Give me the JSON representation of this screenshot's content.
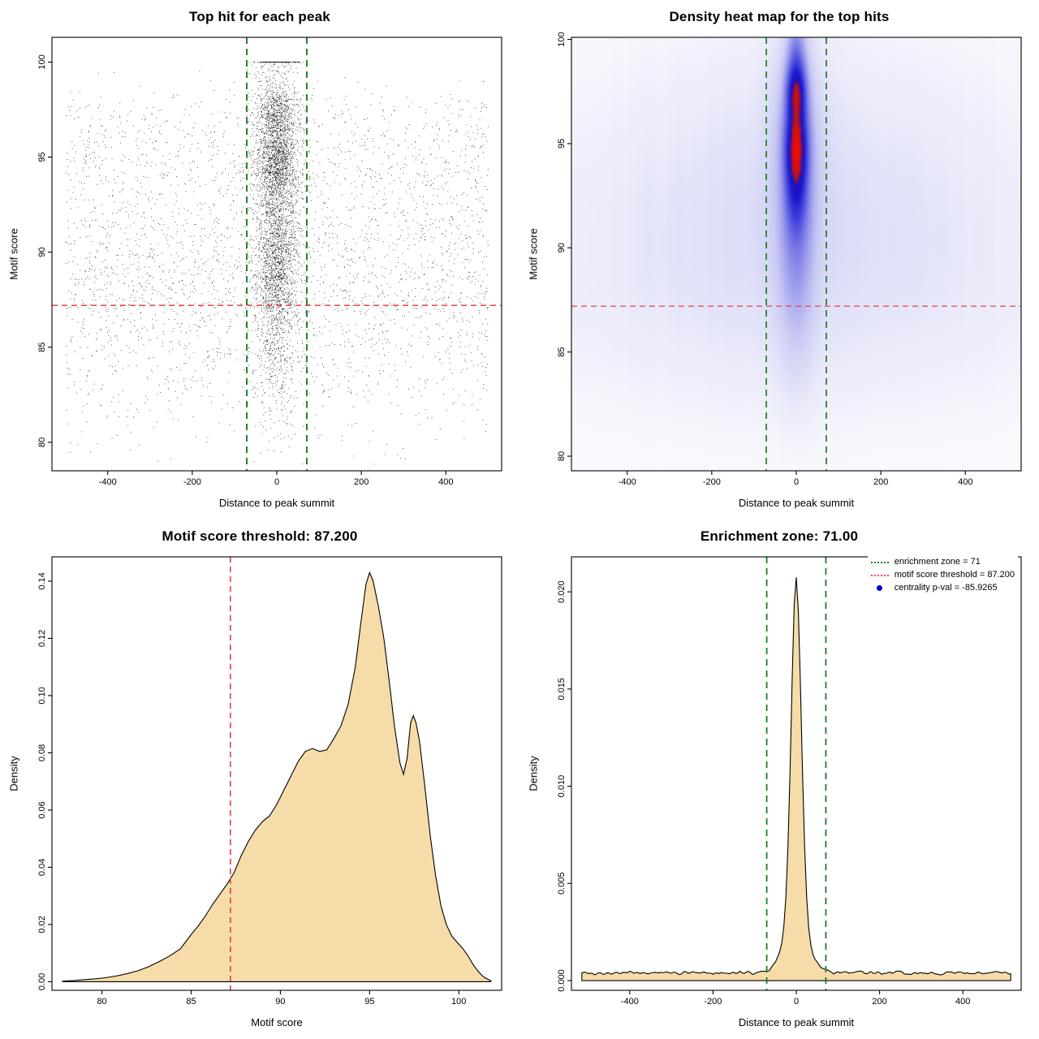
{
  "page": {
    "background": "#ffffff"
  },
  "colors": {
    "point_black": "#000000",
    "threshold_red": "#e63333",
    "zone_green": "#1d7d1d",
    "fill_wheat": "#f5dca8",
    "curve_black": "#000000",
    "legend_blue": "#0000cc",
    "axis_black": "#000000"
  },
  "chart_data": [
    {
      "id": "scatter",
      "type": "scatter",
      "title": "Top hit for each peak",
      "xlabel": "Distance to peak summit",
      "ylabel": "Motif score",
      "xlim": [
        -532,
        532
      ],
      "ylim": [
        78.5,
        101.3
      ],
      "xticks": {
        "values": [
          -400,
          -200,
          0,
          200,
          400
        ],
        "labels": [
          "-400",
          "-200",
          "0",
          "200",
          "400"
        ]
      },
      "yticks": {
        "values": [
          80,
          85,
          90,
          95,
          100
        ],
        "labels": [
          "80",
          "85",
          "90",
          "95",
          "100"
        ]
      },
      "hline": 87.2,
      "vlines": [
        -71,
        71
      ],
      "generator": {
        "seed": 42,
        "clamp_max_score": 100.0,
        "min_score": 78.8,
        "background": {
          "n": 3200,
          "x_uniform": [
            -500,
            500
          ],
          "score_mixture": [
            {
              "mean": 94.8,
              "sd": 1.3,
              "w": 0.2
            },
            {
              "mean": 97.2,
              "sd": 0.9,
              "w": 0.08
            },
            {
              "mean": 91.2,
              "sd": 1.9,
              "w": 0.22
            },
            {
              "mean": 89.0,
              "sd": 1.6,
              "w": 0.18
            },
            {
              "mean": 86.5,
              "sd": 2.1,
              "w": 0.19
            },
            {
              "mean": 83.8,
              "sd": 2.6,
              "w": 0.13
            }
          ]
        },
        "central": {
          "n": 4600,
          "x_normal": {
            "mean": 0,
            "sd": 26
          },
          "score_mixture": [
            {
              "mean": 94.8,
              "sd": 1.2,
              "w": 0.3
            },
            {
              "mean": 97.3,
              "sd": 0.9,
              "w": 0.17
            },
            {
              "mean": 100.4,
              "sd": 0.8,
              "w": 0.06
            },
            {
              "mean": 91.3,
              "sd": 1.8,
              "w": 0.19
            },
            {
              "mean": 89.0,
              "sd": 1.5,
              "w": 0.13
            },
            {
              "mean": 86.5,
              "sd": 2.0,
              "w": 0.1
            },
            {
              "mean": 84.0,
              "sd": 2.4,
              "w": 0.05
            }
          ]
        }
      }
    },
    {
      "id": "heatmap",
      "type": "heatmap",
      "title": "Density heat map for the top hits",
      "xlabel": "Distance to peak summit",
      "ylabel": "Motif score",
      "xlim": [
        -532,
        532
      ],
      "ylim": [
        79.3,
        100.1
      ],
      "xticks": {
        "values": [
          -400,
          -200,
          0,
          200,
          400
        ],
        "labels": [
          "-400",
          "-200",
          "0",
          "200",
          "400"
        ]
      },
      "yticks": {
        "values": [
          80,
          85,
          90,
          95,
          100
        ],
        "labels": [
          "80",
          "85",
          "90",
          "95",
          "100"
        ]
      },
      "hline": 87.2,
      "vlines": [
        -71,
        71
      ],
      "gamma": 0.5,
      "components": [
        {
          "x": 0,
          "y": 94.9,
          "sx": 15,
          "sy": 1.15,
          "w": 1.0
        },
        {
          "x": 0,
          "y": 97.4,
          "sx": 13,
          "sy": 0.85,
          "w": 0.95
        },
        {
          "x": 0,
          "y": 93.1,
          "sx": 16,
          "sy": 1.5,
          "w": 0.55
        },
        {
          "x": 0,
          "y": 96.0,
          "sx": 17,
          "sy": 2.2,
          "w": 0.4
        },
        {
          "x": 0,
          "y": 99.0,
          "sx": 12,
          "sy": 1.2,
          "w": 0.26
        },
        {
          "x": 0,
          "y": 90.8,
          "sx": 22,
          "sy": 2.4,
          "w": 0.16
        },
        {
          "x": 0,
          "y": 95.0,
          "sx": 38,
          "sy": 3.2,
          "w": 0.12
        },
        {
          "x": 0,
          "y": 92.0,
          "sx": 34,
          "sy": 4.0,
          "w": 0.09
        },
        {
          "x": 0,
          "y": 87.6,
          "sx": 30,
          "sy": 2.8,
          "w": 0.05
        },
        {
          "x": 0,
          "y": 92.5,
          "sx": 280,
          "sy": 4.8,
          "w": 0.035
        },
        {
          "x": 0,
          "y": 88.5,
          "sx": 430,
          "sy": 4.0,
          "w": 0.022
        }
      ],
      "streaks": {
        "seed": 7,
        "amp": 0.01,
        "y_center": 91.5,
        "y_sd": 6.0
      },
      "colormap": [
        {
          "t": 0.0,
          "c": "#ffffff"
        },
        {
          "t": 0.05,
          "c": "#f7f7fd"
        },
        {
          "t": 0.12,
          "c": "#e9e9fa"
        },
        {
          "t": 0.25,
          "c": "#c9c9f4"
        },
        {
          "t": 0.42,
          "c": "#8a8aea"
        },
        {
          "t": 0.6,
          "c": "#4545dd"
        },
        {
          "t": 0.74,
          "c": "#1717cf"
        },
        {
          "t": 0.84,
          "c": "#2a10b4"
        },
        {
          "t": 0.885,
          "c": "#bb1212"
        },
        {
          "t": 1.0,
          "c": "#ee0d0d"
        }
      ]
    },
    {
      "id": "score_density",
      "type": "density",
      "title": "Motif score threshold: 87.200",
      "xlabel": "Motif score",
      "ylabel": "Density",
      "xlim": [
        77.2,
        102.4
      ],
      "ylim": [
        -0.003,
        0.1485
      ],
      "xticks": {
        "values": [
          80,
          85,
          90,
          95,
          100
        ],
        "labels": [
          "80",
          "85",
          "90",
          "95",
          "100"
        ]
      },
      "yticks": {
        "values": [
          0,
          0.02,
          0.04,
          0.06,
          0.08,
          0.1,
          0.12,
          0.14
        ],
        "labels": [
          "0.00",
          "0.02",
          "0.04",
          "0.06",
          "0.08",
          "0.10",
          "0.12",
          "0.14"
        ]
      },
      "vline_red": 87.2,
      "points": [
        [
          77.8,
          0.0002
        ],
        [
          78.4,
          0.0004
        ],
        [
          79,
          0.0007
        ],
        [
          79.6,
          0.001
        ],
        [
          80.2,
          0.0014
        ],
        [
          80.8,
          0.002
        ],
        [
          81.4,
          0.0028
        ],
        [
          82,
          0.0038
        ],
        [
          82.6,
          0.0052
        ],
        [
          83.2,
          0.007
        ],
        [
          83.8,
          0.009
        ],
        [
          84.4,
          0.0115
        ],
        [
          85,
          0.0165
        ],
        [
          85.4,
          0.0195
        ],
        [
          85.8,
          0.023
        ],
        [
          86.2,
          0.027
        ],
        [
          86.6,
          0.0305
        ],
        [
          87,
          0.034
        ],
        [
          87.4,
          0.038
        ],
        [
          87.8,
          0.044
        ],
        [
          88.2,
          0.049
        ],
        [
          88.6,
          0.053
        ],
        [
          89,
          0.056
        ],
        [
          89.4,
          0.058
        ],
        [
          89.8,
          0.062
        ],
        [
          90.2,
          0.067
        ],
        [
          90.6,
          0.072
        ],
        [
          91,
          0.077
        ],
        [
          91.4,
          0.0805
        ],
        [
          91.8,
          0.0815
        ],
        [
          92.2,
          0.0805
        ],
        [
          92.6,
          0.081
        ],
        [
          93,
          0.085
        ],
        [
          93.4,
          0.0895
        ],
        [
          93.8,
          0.097
        ],
        [
          94.2,
          0.11
        ],
        [
          94.5,
          0.125
        ],
        [
          94.8,
          0.139
        ],
        [
          95,
          0.143
        ],
        [
          95.2,
          0.14
        ],
        [
          95.5,
          0.131
        ],
        [
          95.8,
          0.12
        ],
        [
          96.1,
          0.105
        ],
        [
          96.4,
          0.089
        ],
        [
          96.7,
          0.0765
        ],
        [
          96.9,
          0.0725
        ],
        [
          97.1,
          0.078
        ],
        [
          97.3,
          0.0905
        ],
        [
          97.45,
          0.093
        ],
        [
          97.6,
          0.0905
        ],
        [
          97.8,
          0.084
        ],
        [
          98.1,
          0.068
        ],
        [
          98.4,
          0.051
        ],
        [
          98.7,
          0.037
        ],
        [
          99,
          0.0265
        ],
        [
          99.3,
          0.02
        ],
        [
          99.6,
          0.016
        ],
        [
          99.9,
          0.0138
        ],
        [
          100.2,
          0.0118
        ],
        [
          100.5,
          0.0092
        ],
        [
          100.8,
          0.006
        ],
        [
          101.1,
          0.0035
        ],
        [
          101.4,
          0.0016
        ],
        [
          101.8,
          0.0003
        ]
      ]
    },
    {
      "id": "position_density",
      "type": "density",
      "title": "Enrichment zone: 71.00",
      "xlabel": "Distance to peak summit",
      "ylabel": "Density",
      "xlim": [
        -540,
        540
      ],
      "ylim": [
        -0.0005,
        0.0218
      ],
      "xticks": {
        "values": [
          -400,
          -200,
          0,
          200,
          400
        ],
        "labels": [
          "-400",
          "-200",
          "0",
          "200",
          "400"
        ]
      },
      "yticks": {
        "values": [
          0,
          0.005,
          0.01,
          0.015,
          0.02
        ],
        "labels": [
          "0.000",
          "0.005",
          "0.010",
          "0.015",
          "0.020"
        ]
      },
      "vlines_green": [
        -71,
        71
      ],
      "curve_generator": {
        "seed": 99,
        "x_start": -515,
        "x_end": 515,
        "step": 5,
        "baseline": 0.00035,
        "noise_amp": 0.00022,
        "peaks": [
          {
            "mean": 0,
            "sd": 12.5,
            "amp": 0.0172
          },
          {
            "mean": 0,
            "sd": 30,
            "amp": 0.0022
          },
          {
            "mean": -2,
            "sd": 6,
            "amp": 0.001
          }
        ]
      },
      "legend": {
        "items": [
          {
            "label": "enrichment zone = 71",
            "marker": "dotted-line",
            "color": "#1d7d1d"
          },
          {
            "label": "motif score threshold = 87.200",
            "marker": "dotted-line",
            "color": "#ff4343"
          },
          {
            "label": "centrality p-val = -85.9265",
            "marker": "point",
            "color": "#0000cc"
          }
        ]
      }
    }
  ]
}
